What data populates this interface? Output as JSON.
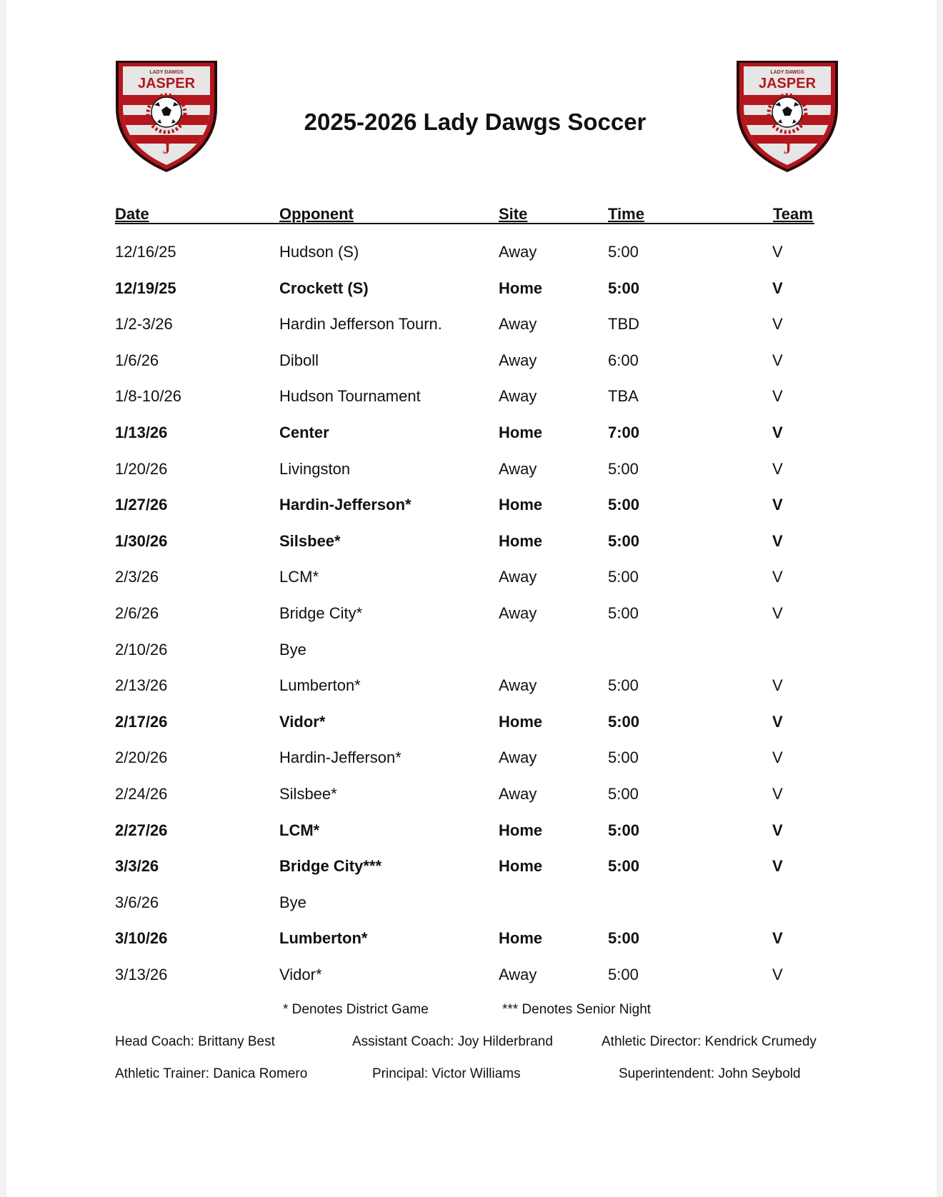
{
  "logo_text": {
    "top": "LADY DAWGS",
    "main": "JASPER",
    "letter": "J"
  },
  "colors": {
    "brand_red": "#b3161c",
    "dark_border": "#2a0a0a"
  },
  "title": "2025-2026 Lady Dawgs Soccer",
  "columns": [
    "Date",
    "Opponent",
    "Site",
    "Time",
    "Team"
  ],
  "rows": [
    {
      "date": "12/16/25",
      "opponent": "Hudson (S)",
      "site": "Away",
      "time": "5:00",
      "team": "V",
      "bold": false
    },
    {
      "date": "12/19/25",
      "opponent": "Crockett (S)",
      "site": "Home",
      "time": "5:00",
      "team": "V",
      "bold": true
    },
    {
      "date": "1/2-3/26",
      "opponent": "Hardin Jefferson Tourn.",
      "site": "Away",
      "time": "TBD",
      "team": "V",
      "bold": false
    },
    {
      "date": "1/6/26",
      "opponent": "Diboll",
      "site": "Away",
      "time": "6:00",
      "team": "V",
      "bold": false
    },
    {
      "date": "1/8-10/26",
      "opponent": "Hudson Tournament",
      "site": "Away",
      "time": "TBA",
      "team": "V",
      "bold": false
    },
    {
      "date": "1/13/26",
      "opponent": "Center",
      "site": "Home",
      "time": "7:00",
      "team": "V",
      "bold": true
    },
    {
      "date": "1/20/26",
      "opponent": "Livingston",
      "site": "Away",
      "time": "5:00",
      "team": "V",
      "bold": false
    },
    {
      "date": "1/27/26",
      "opponent": "Hardin-Jefferson*",
      "site": "Home",
      "time": "5:00",
      "team": "V",
      "bold": true
    },
    {
      "date": "1/30/26",
      "opponent": "Silsbee*",
      "site": "Home",
      "time": "5:00",
      "team": "V",
      "bold": true
    },
    {
      "date": "2/3/26",
      "opponent": "LCM*",
      "site": "Away",
      "time": "5:00",
      "team": "V",
      "bold": false
    },
    {
      "date": "2/6/26",
      "opponent": "Bridge City*",
      "site": "Away",
      "time": "5:00",
      "team": "V",
      "bold": false
    },
    {
      "date": "2/10/26",
      "opponent": "Bye",
      "site": "",
      "time": "",
      "team": "",
      "bold": false
    },
    {
      "date": "2/13/26",
      "opponent": "Lumberton*",
      "site": "Away",
      "time": "5:00",
      "team": "V",
      "bold": false
    },
    {
      "date": "2/17/26",
      "opponent": "Vidor*",
      "site": "Home",
      "time": "5:00",
      "team": "V",
      "bold": true
    },
    {
      "date": "2/20/26",
      "opponent": "Hardin-Jefferson*",
      "site": "Away",
      "time": "5:00",
      "team": "V",
      "bold": false
    },
    {
      "date": "2/24/26",
      "opponent": "Silsbee*",
      "site": "Away",
      "time": "5:00",
      "team": "V",
      "bold": false
    },
    {
      "date": "2/27/26",
      "opponent": "LCM*",
      "site": "Home",
      "time": "5:00",
      "team": "V",
      "bold": true
    },
    {
      "date": "3/3/26",
      "opponent": "Bridge City***",
      "site": "Home",
      "time": "5:00",
      "team": "V",
      "bold": true
    },
    {
      "date": "3/6/26",
      "opponent": "Bye",
      "site": "",
      "time": "",
      "team": "",
      "bold": false
    },
    {
      "date": "3/10/26",
      "opponent": "Lumberton*",
      "site": "Home",
      "time": "5:00",
      "team": "V",
      "bold": true
    },
    {
      "date": "3/13/26",
      "opponent": "Vidor*",
      "site": "Away",
      "time": "5:00",
      "team": "V",
      "bold": false
    }
  ],
  "notes": {
    "district": "* Denotes District Game",
    "senior": "*** Denotes Senior Night"
  },
  "staff": {
    "head_coach": "Head Coach: Brittany Best",
    "assistant_coach": "Assistant Coach: Joy Hilderbrand",
    "athletic_director": "Athletic Director: Kendrick Crumedy",
    "athletic_trainer": "Athletic Trainer: Danica Romero",
    "principal": "Principal: Victor Williams",
    "superintendent": "Superintendent: John Seybold"
  }
}
